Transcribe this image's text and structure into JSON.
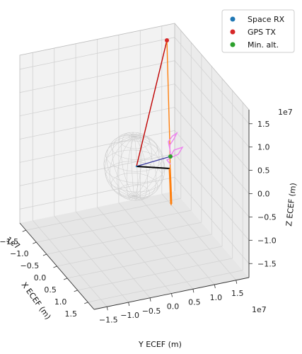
{
  "chart_data": {
    "type": "scatter",
    "projection": "3d",
    "xlabel": "X ECEF (m)",
    "ylabel": "Y ECEF (m)",
    "zlabel": "Z ECEF (m)",
    "x_scale_label": "1e7",
    "y_scale_label": "1e7",
    "z_scale_label": "1e7",
    "x_ticks": [
      "−1.5",
      "−1.0",
      "−0.5",
      "0.0",
      "0.5",
      "1.0",
      "1.5"
    ],
    "y_ticks": [
      "−1.5",
      "−1.0",
      "−0.5",
      "0.0",
      "0.5",
      "1.0",
      "1.5"
    ],
    "z_ticks": [
      "−1.5",
      "−1.0",
      "−0.5",
      "0.0",
      "0.5",
      "1.0",
      "1.5"
    ],
    "grid": true,
    "legend_placement": "top-right",
    "series": [
      {
        "name": "Space RX",
        "marker": "point",
        "color": "#1f77b4"
      },
      {
        "name": "GPS TX",
        "marker": "point",
        "color": "#d62728"
      },
      {
        "name": "Min. alt.",
        "marker": "point",
        "color": "#2ca02c"
      }
    ],
    "colors": {
      "earth_wire": "#c9c9c9",
      "gps_link": "#c00000",
      "orbit_track": "#ff7f0e",
      "rx_track": "#ee82ee",
      "min_alt_line": "#000000",
      "ground_link": "#3a3aa0"
    }
  }
}
